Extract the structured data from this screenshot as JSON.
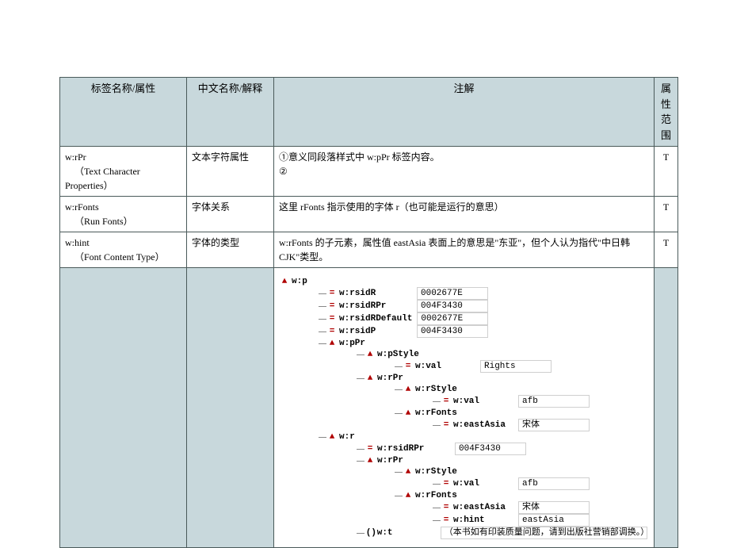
{
  "headers": {
    "tag": "标签名称/属性",
    "cn": "中文名称/解释",
    "note": "注解",
    "range": "属性范围"
  },
  "rows": [
    {
      "tag1": "w:rPr",
      "tag2": "（Text Character Properties）",
      "cn": "文本字符属性",
      "note1": "①意义同段落样式中 w:pPr 标签内容。",
      "note2": "②",
      "range": "T"
    },
    {
      "tag1": "w:rFonts",
      "tag2": "（Run Fonts）",
      "cn": "字体关系",
      "note1": "这里 rFonts 指示使用的字体 r（也可能是运行的意思）",
      "note2": "",
      "range": "T"
    },
    {
      "tag1": "w:hint",
      "tag2": "（Font Content Type）",
      "cn": "字体的类型",
      "note1": "w:rFonts 的子元素，属性值 eastAsia 表面上的意思是\"东亚\"，但个人认为指代\"中日韩 CJK\"类型。",
      "note2": "",
      "range": "T"
    }
  ],
  "tree": {
    "root": "w:p",
    "attrs": [
      {
        "k": "w:rsidR",
        "v": "0002677E"
      },
      {
        "k": "w:rsidRPr",
        "v": "004F3430"
      },
      {
        "k": "w:rsidRDefault",
        "v": "0002677E"
      },
      {
        "k": "w:rsidP",
        "v": "004F3430"
      }
    ],
    "pPr": {
      "label": "w:pPr",
      "pStyle": {
        "label": "w:pStyle",
        "valKey": "w:val",
        "valVal": "Rights"
      },
      "rPr": {
        "label": "w:rPr",
        "rStyle": {
          "label": "w:rStyle",
          "valKey": "w:val",
          "valVal": "afb"
        },
        "rFonts": {
          "label": "w:rFonts",
          "valKey": "w:eastAsia",
          "valVal": "宋体"
        }
      }
    },
    "r": {
      "label": "w:r",
      "rsidRPr": {
        "k": "w:rsidRPr",
        "v": "004F3430"
      },
      "rPr": {
        "label": "w:rPr",
        "rStyle": {
          "label": "w:rStyle",
          "valKey": "w:val",
          "valVal": "afb"
        },
        "rFonts": {
          "label": "w:rFonts",
          "ea": {
            "k": "w:eastAsia",
            "v": "宋体"
          },
          "hint": {
            "k": "w:hint",
            "v": "eastAsia"
          }
        }
      },
      "t": {
        "label": "w:t",
        "text": "（本书如有印装质量问题，请到出版社营销部调换。）"
      }
    }
  }
}
